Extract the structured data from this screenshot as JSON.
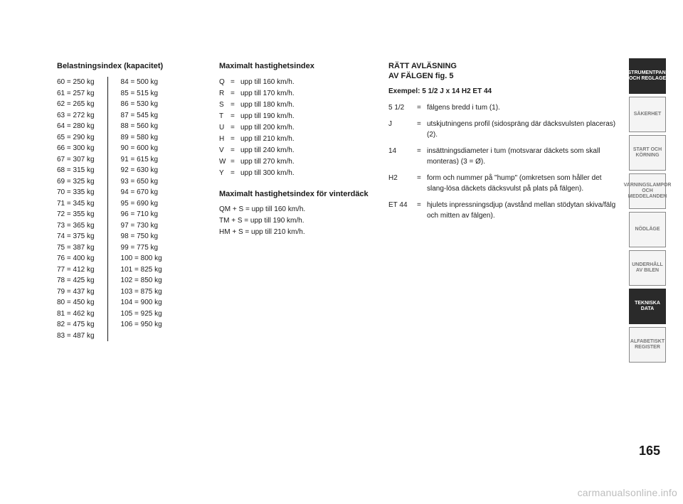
{
  "page_number": "165",
  "watermark": "carmanualsonline.info",
  "load": {
    "heading": "Belastningsindex (kapacitet)",
    "left": [
      "60 = 250 kg",
      "61 = 257 kg",
      "62 = 265 kg",
      "63 = 272 kg",
      "64 = 280 kg",
      "65 = 290 kg",
      "66 = 300 kg",
      "67 = 307 kg",
      "68 = 315 kg",
      "69 = 325 kg",
      "70 = 335 kg",
      "71 = 345 kg",
      "72 = 355 kg",
      "73 = 365 kg",
      "74 = 375 kg",
      "75 = 387 kg",
      "76 = 400 kg",
      "77 = 412 kg",
      "78 = 425 kg",
      "79 = 437 kg",
      "80 = 450 kg",
      "81 = 462 kg",
      "82 = 475 kg",
      "83 = 487 kg"
    ],
    "right": [
      "84 = 500 kg",
      "85 = 515 kg",
      "86 = 530 kg",
      "87 = 545 kg",
      "88 = 560 kg",
      "89 = 580 kg",
      "90 = 600 kg",
      "91 = 615 kg",
      "92 = 630 kg",
      "93 = 650 kg",
      "94 = 670 kg",
      "95 = 690 kg",
      "96 = 710 kg",
      "97 = 730 kg",
      "98 = 750 kg",
      "99 = 775 kg",
      "100 = 800 kg",
      "101 = 825 kg",
      "102 = 850 kg",
      "103 = 875 kg",
      "104 = 900 kg",
      "105 = 925 kg",
      "106 = 950 kg"
    ]
  },
  "speed": {
    "heading": "Maximalt hastighetsindex",
    "rows": [
      {
        "code": "Q",
        "text": "upp till 160 km/h."
      },
      {
        "code": "R",
        "text": "upp till 170 km/h."
      },
      {
        "code": "S",
        "text": "upp till 180 km/h."
      },
      {
        "code": "T",
        "text": "upp till 190 km/h."
      },
      {
        "code": "U",
        "text": "upp till 200 km/h."
      },
      {
        "code": "H",
        "text": "upp till 210 km/h."
      },
      {
        "code": "V",
        "text": "upp till 240 km/h."
      },
      {
        "code": "W",
        "text": "upp till 270 km/h."
      },
      {
        "code": "Y",
        "text": "upp till 300 km/h."
      }
    ],
    "winter_heading": "Maximalt hastighetsindex för vinterdäck",
    "winter": [
      "QM + S = upp till 160 km/h.",
      "TM + S = upp till 190 km/h.",
      "HM + S = upp till 210 km/h."
    ]
  },
  "rim": {
    "heading_l1": "RÄTT AVLÄSNING",
    "heading_l2": "AV FÄLGEN fig. 5",
    "example": "Exempel: 5 1/2 J x 14 H2 ET 44",
    "defs": [
      {
        "key": "5 1/2",
        "text": "fälgens bredd i tum (1)."
      },
      {
        "key": "J",
        "text": "utskjutningens profil (sidospräng där däcksvulsten placeras) (2)."
      },
      {
        "key": "14",
        "text": "insättningsdiameter i tum (motsvarar däckets som skall monteras) (3 = Ø)."
      },
      {
        "key": "H2",
        "text": "form och nummer på \"hump\" (omkretsen som håller det slang-lösa däckets däcksvulst på plats på fälgen)."
      },
      {
        "key": "ET 44",
        "text": "hjulets inpressningsdjup (avstånd mellan stödytan skiva/fälg och mitten av fälgen)."
      }
    ]
  },
  "tabs": [
    {
      "label": "INSTRUMENTPANEL OCH REGLAGE",
      "active": true
    },
    {
      "label": "SÄKERHET",
      "active": false
    },
    {
      "label": "START OCH KÖRNING",
      "active": false
    },
    {
      "label": "VARNINGSLAMPOR OCH MEDDELANDEN",
      "active": false
    },
    {
      "label": "NÖDLÄGE",
      "active": false
    },
    {
      "label": "UNDERHÅLL AV BILEN",
      "active": false
    },
    {
      "label": "TEKNISKA DATA",
      "active": true
    },
    {
      "label": "ALFABETISKT REGISTER",
      "active": false
    }
  ]
}
